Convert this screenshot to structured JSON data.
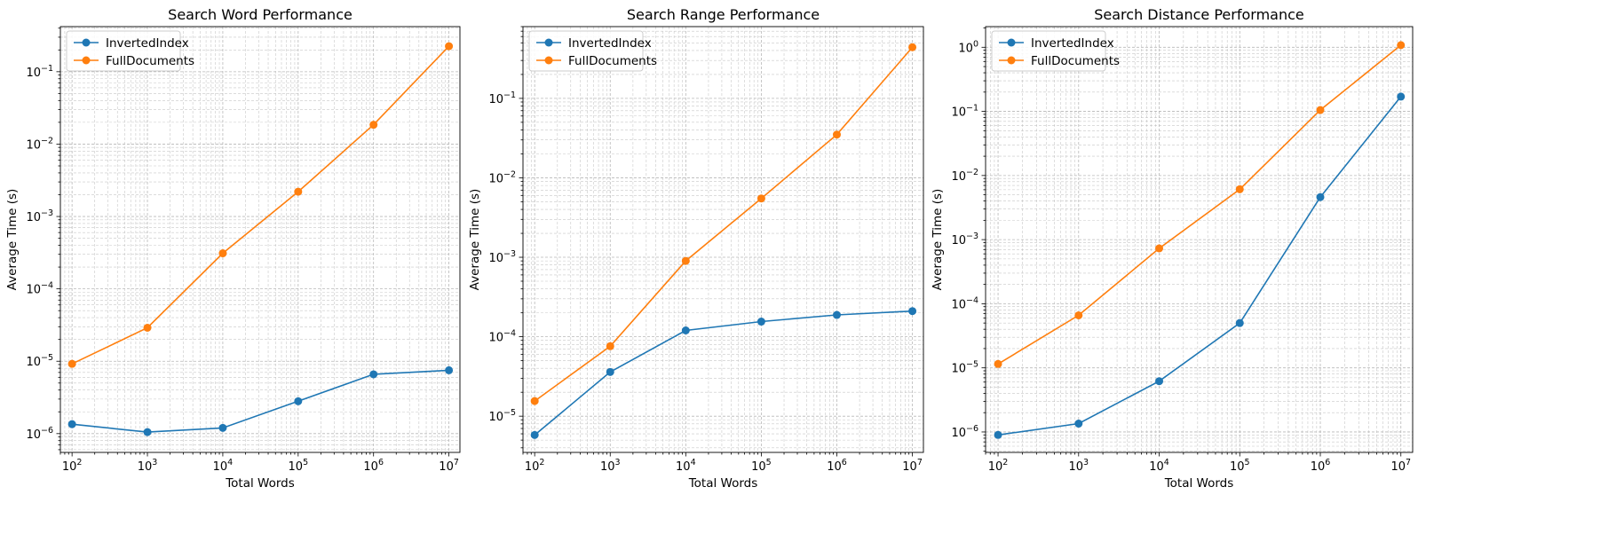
{
  "chart_data": [
    {
      "type": "line",
      "title": "Search Word Performance",
      "xlabel": "Total Words",
      "ylabel": "Average Time (s)",
      "xscale": "log",
      "yscale": "log",
      "xlim": [
        70,
        14000000
      ],
      "ylim": [
        5.5e-07,
        0.42
      ],
      "x": [
        100,
        1000,
        10000,
        100000,
        1000000,
        10000000
      ],
      "xticks": [
        100,
        1000,
        10000,
        100000,
        1000000,
        10000000
      ],
      "yticks": [
        1e-06,
        1e-05,
        0.0001,
        0.001,
        0.01,
        0.1
      ],
      "grid": true,
      "legend": "top-left",
      "series": [
        {
          "name": "InvertedIndex",
          "color": "#1f77b4",
          "values": [
            1.35e-06,
            1.05e-06,
            1.2e-06,
            2.8e-06,
            6.6e-06,
            7.5e-06
          ]
        },
        {
          "name": "FullDocuments",
          "color": "#ff7f0e",
          "values": [
            9.2e-06,
            2.9e-05,
            0.00031,
            0.0022,
            0.0185,
            0.225
          ]
        }
      ]
    },
    {
      "type": "line",
      "title": "Search Range Performance",
      "xlabel": "Total Words",
      "ylabel": "Average Time (s)",
      "xscale": "log",
      "yscale": "log",
      "xlim": [
        70,
        14000000
      ],
      "ylim": [
        3.5e-06,
        0.8
      ],
      "x": [
        100,
        1000,
        10000,
        100000,
        1000000,
        10000000
      ],
      "xticks": [
        100,
        1000,
        10000,
        100000,
        1000000,
        10000000
      ],
      "yticks": [
        1e-05,
        0.0001,
        0.001,
        0.01,
        0.1
      ],
      "grid": true,
      "legend": "top-left",
      "series": [
        {
          "name": "InvertedIndex",
          "color": "#1f77b4",
          "values": [
            5.8e-06,
            3.6e-05,
            0.00012,
            0.000155,
            0.000188,
            0.00021
          ]
        },
        {
          "name": "FullDocuments",
          "color": "#ff7f0e",
          "values": [
            1.55e-05,
            7.6e-05,
            0.0009,
            0.0055,
            0.035,
            0.44
          ]
        }
      ]
    },
    {
      "type": "line",
      "title": "Search Distance Performance",
      "xlabel": "Total Words",
      "ylabel": "Average Time (s)",
      "xscale": "log",
      "yscale": "log",
      "xlim": [
        70,
        14000000
      ],
      "ylim": [
        4.8e-07,
        2.1
      ],
      "x": [
        100,
        1000,
        10000,
        100000,
        1000000,
        10000000
      ],
      "xticks": [
        100,
        1000,
        10000,
        100000,
        1000000,
        10000000
      ],
      "yticks": [
        1e-06,
        1e-05,
        0.0001,
        0.001,
        0.01,
        0.1,
        1
      ],
      "grid": true,
      "legend": "top-left",
      "series": [
        {
          "name": "InvertedIndex",
          "color": "#1f77b4",
          "values": [
            9e-07,
            1.35e-06,
            6.2e-06,
            5e-05,
            0.0046,
            0.17
          ]
        },
        {
          "name": "FullDocuments",
          "color": "#ff7f0e",
          "values": [
            1.15e-05,
            6.6e-05,
            0.00073,
            0.0061,
            0.105,
            1.08
          ]
        }
      ]
    }
  ]
}
